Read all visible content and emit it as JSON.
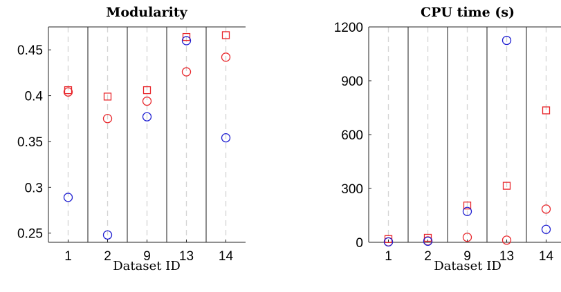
{
  "chart_data": [
    {
      "type": "scatter",
      "title": "Modularity",
      "xlabel": "Dataset ID",
      "ylabel": "",
      "categories": [
        "1",
        "2",
        "9",
        "13",
        "14"
      ],
      "ylim": [
        0.24,
        0.475
      ],
      "yticks": [
        0.25,
        0.3,
        0.35,
        0.4,
        0.45
      ],
      "ytick_labels": [
        "0.25",
        "0.3",
        "0.35",
        "0.4",
        "0.45"
      ],
      "grid": "dashed vertical at categories, solid separators between categories",
      "series": [
        {
          "marker": "square",
          "color": "#e8262b",
          "values": [
            0.406,
            0.399,
            0.406,
            0.464,
            0.466
          ]
        },
        {
          "marker": "circle",
          "color": "#e8262b",
          "values": [
            0.404,
            0.375,
            0.394,
            0.426,
            0.442
          ]
        },
        {
          "marker": "circle",
          "color": "#1f1fd1",
          "values": [
            0.289,
            0.248,
            0.377,
            0.46,
            0.354
          ]
        }
      ]
    },
    {
      "type": "scatter",
      "title": "CPU time (s)",
      "xlabel": "Dataset ID",
      "ylabel": "",
      "categories": [
        "1",
        "2",
        "9",
        "13",
        "14"
      ],
      "ylim": [
        0,
        1200
      ],
      "yticks": [
        0,
        300,
        600,
        900,
        1200
      ],
      "ytick_labels": [
        "0",
        "300",
        "600",
        "900",
        "1200"
      ],
      "grid": "dashed vertical at categories, solid separators between categories",
      "series": [
        {
          "marker": "square",
          "color": "#e8262b",
          "values": [
            18,
            25,
            205,
            315,
            735
          ]
        },
        {
          "marker": "circle",
          "color": "#e8262b",
          "values": [
            3,
            8,
            28,
            12,
            185
          ]
        },
        {
          "marker": "circle",
          "color": "#1f1fd1",
          "values": [
            2,
            6,
            172,
            1125,
            72
          ]
        }
      ]
    }
  ]
}
